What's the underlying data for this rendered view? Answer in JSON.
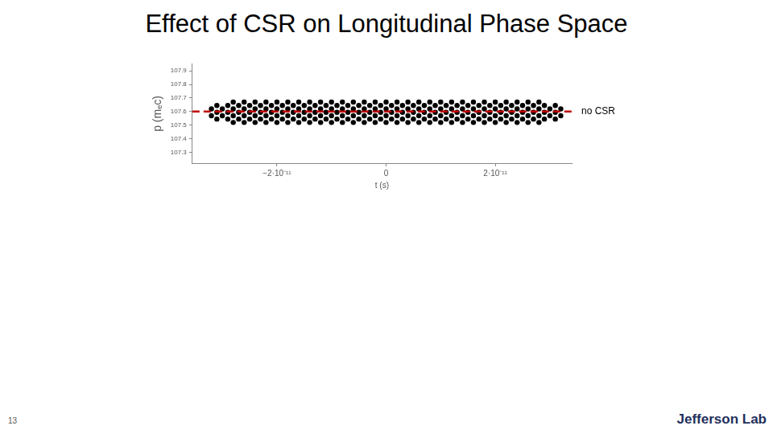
{
  "chart_data": {
    "type": "scatter",
    "title": "Effect of CSR on Longitudinal Phase Space",
    "x_label": "t (s)",
    "y_label": "p (mₑc)",
    "color": "#000000",
    "marker": "circle",
    "grid": false,
    "xlim": [
      -3.55e-11,
      3.4e-11
    ],
    "ylim": [
      107.22,
      107.95
    ],
    "xticks": [
      {
        "value": -2e-11,
        "label": "−2·10⁻¹¹"
      },
      0,
      {
        "value": 2e-11,
        "label": "2·10⁻¹¹"
      }
    ],
    "yticks": [
      107.3,
      107.4,
      107.5,
      107.6,
      107.7,
      107.8,
      107.9
    ],
    "x": [
      -2.8e-11,
      -2.6e-11,
      -2.4e-11,
      -2.2e-11,
      -2e-11,
      -1.8e-11,
      -1.6e-11,
      -1.4e-11,
      -1.2e-11,
      -1e-11,
      -8e-12,
      -6e-12,
      -4e-12,
      -2e-12,
      0,
      2e-12,
      4e-12,
      6e-12,
      8e-12,
      1e-11,
      1.2e-11,
      1.4e-11,
      1.6e-11,
      1.8e-11,
      2e-11,
      2.2e-11,
      2.4e-11,
      2.6e-11,
      2.8e-11,
      -3.1e-11,
      -2.9e-11,
      -2.7e-11,
      -2.5e-11,
      -2.3e-11,
      -2.1e-11,
      -1.9e-11,
      -1.7e-11,
      -1.5e-11,
      -1.3e-11,
      -1.1e-11,
      -9e-12,
      -7e-12,
      -5e-12,
      -3e-12,
      -1e-12,
      1e-12,
      3e-12,
      5e-12,
      7e-12,
      9e-12,
      1.1e-11,
      1.3e-11,
      1.5e-11,
      1.7e-11,
      1.9e-11,
      2.1e-11,
      2.3e-11,
      2.5e-11,
      2.7e-11,
      2.9e-11,
      3.1e-11,
      -3.2e-11,
      -3e-11,
      -2.8e-11,
      -2.6e-11,
      -2.4e-11,
      -2.2e-11,
      -2e-11,
      -1.8e-11,
      -1.6e-11,
      -1.4e-11,
      -1.2e-11,
      -1e-11,
      -8e-12,
      -6e-12,
      -4e-12,
      -2e-12,
      0,
      2e-12,
      4e-12,
      6e-12,
      8e-12,
      1e-11,
      1.2e-11,
      1.4e-11,
      1.6e-11,
      1.8e-11,
      2e-11,
      2.2e-11,
      2.4e-11,
      2.6e-11,
      2.8e-11,
      3e-11,
      3.2e-11,
      -3.1e-11,
      -2.9e-11,
      -2.7e-11,
      -2.5e-11,
      -2.3e-11,
      -2.1e-11,
      -1.9e-11,
      -1.7e-11,
      -1.5e-11,
      -1.3e-11,
      -1.1e-11,
      -9e-12,
      -7e-12,
      -5e-12,
      -3e-12,
      -1e-12,
      1e-12,
      3e-12,
      5e-12,
      7e-12,
      9e-12,
      1.1e-11,
      1.3e-11,
      1.5e-11,
      1.7e-11,
      1.9e-11,
      2.1e-11,
      2.3e-11,
      2.5e-11,
      2.7e-11,
      2.9e-11,
      3.1e-11,
      -3.2e-11,
      -3e-11,
      -2.8e-11,
      -2.6e-11,
      -2.4e-11,
      -2.2e-11,
      -2e-11,
      -1.8e-11,
      -1.6e-11,
      -1.4e-11,
      -1.2e-11,
      -1e-11,
      -8e-12,
      -6e-12,
      -4e-12,
      -2e-12,
      0,
      2e-12,
      4e-12,
      6e-12,
      8e-12,
      1e-11,
      1.2e-11,
      1.4e-11,
      1.6e-11,
      1.8e-11,
      2e-11,
      2.2e-11,
      2.4e-11,
      2.6e-11,
      2.8e-11,
      3e-11,
      3.2e-11,
      -3.1e-11,
      -2.9e-11,
      -2.7e-11,
      -2.5e-11,
      -2.3e-11,
      -2.1e-11,
      -1.9e-11,
      -1.7e-11,
      -1.5e-11,
      -1.3e-11,
      -1.1e-11,
      -9e-12,
      -7e-12,
      -5e-12,
      -3e-12,
      -1e-12,
      1e-12,
      3e-12,
      5e-12,
      7e-12,
      9e-12,
      1.1e-11,
      1.3e-11,
      1.5e-11,
      1.7e-11,
      1.9e-11,
      2.1e-11,
      2.3e-11,
      2.5e-11,
      2.7e-11,
      2.9e-11,
      3.1e-11,
      -2.8e-11,
      -2.6e-11,
      -2.4e-11,
      -2.2e-11,
      -2e-11,
      -1.8e-11,
      -1.6e-11,
      -1.4e-11,
      -1.2e-11,
      -1e-11,
      -8e-12,
      -6e-12,
      -4e-12,
      -2e-12,
      0,
      2e-12,
      4e-12,
      6e-12,
      8e-12,
      1e-11,
      1.2e-11,
      1.4e-11,
      1.6e-11,
      1.8e-11,
      2e-11,
      2.2e-11,
      2.4e-11,
      2.6e-11,
      2.8e-11
    ],
    "values": [
      107.67,
      107.67,
      107.67,
      107.67,
      107.67,
      107.67,
      107.67,
      107.67,
      107.67,
      107.67,
      107.67,
      107.67,
      107.67,
      107.67,
      107.67,
      107.67,
      107.67,
      107.67,
      107.67,
      107.67,
      107.67,
      107.67,
      107.67,
      107.67,
      107.67,
      107.67,
      107.67,
      107.67,
      107.67,
      107.645,
      107.645,
      107.645,
      107.645,
      107.645,
      107.645,
      107.645,
      107.645,
      107.645,
      107.645,
      107.645,
      107.645,
      107.645,
      107.645,
      107.645,
      107.645,
      107.645,
      107.645,
      107.645,
      107.645,
      107.645,
      107.645,
      107.645,
      107.645,
      107.645,
      107.645,
      107.645,
      107.645,
      107.645,
      107.645,
      107.645,
      107.645,
      107.62,
      107.62,
      107.62,
      107.62,
      107.62,
      107.62,
      107.62,
      107.62,
      107.62,
      107.62,
      107.62,
      107.62,
      107.62,
      107.62,
      107.62,
      107.62,
      107.62,
      107.62,
      107.62,
      107.62,
      107.62,
      107.62,
      107.62,
      107.62,
      107.62,
      107.62,
      107.62,
      107.62,
      107.62,
      107.62,
      107.62,
      107.62,
      107.62,
      107.595,
      107.595,
      107.595,
      107.595,
      107.595,
      107.595,
      107.595,
      107.595,
      107.595,
      107.595,
      107.595,
      107.595,
      107.595,
      107.595,
      107.595,
      107.595,
      107.595,
      107.595,
      107.595,
      107.595,
      107.595,
      107.595,
      107.595,
      107.595,
      107.595,
      107.595,
      107.595,
      107.595,
      107.595,
      107.595,
      107.595,
      107.595,
      107.57,
      107.57,
      107.57,
      107.57,
      107.57,
      107.57,
      107.57,
      107.57,
      107.57,
      107.57,
      107.57,
      107.57,
      107.57,
      107.57,
      107.57,
      107.57,
      107.57,
      107.57,
      107.57,
      107.57,
      107.57,
      107.57,
      107.57,
      107.57,
      107.57,
      107.57,
      107.57,
      107.57,
      107.57,
      107.57,
      107.57,
      107.57,
      107.57,
      107.545,
      107.545,
      107.545,
      107.545,
      107.545,
      107.545,
      107.545,
      107.545,
      107.545,
      107.545,
      107.545,
      107.545,
      107.545,
      107.545,
      107.545,
      107.545,
      107.545,
      107.545,
      107.545,
      107.545,
      107.545,
      107.545,
      107.545,
      107.545,
      107.545,
      107.545,
      107.545,
      107.545,
      107.545,
      107.545,
      107.545,
      107.545,
      107.52,
      107.52,
      107.52,
      107.52,
      107.52,
      107.52,
      107.52,
      107.52,
      107.52,
      107.52,
      107.52,
      107.52,
      107.52,
      107.52,
      107.52,
      107.52,
      107.52,
      107.52,
      107.52,
      107.52,
      107.52,
      107.52,
      107.52,
      107.52,
      107.52,
      107.52,
      107.52,
      107.52,
      107.52
    ],
    "reference_line": {
      "y": 107.6,
      "label": "no CSR",
      "color": "#c00000",
      "line_style": "dashed"
    }
  },
  "footer": {
    "page_number": "13",
    "logo": "Jefferson Lab"
  }
}
